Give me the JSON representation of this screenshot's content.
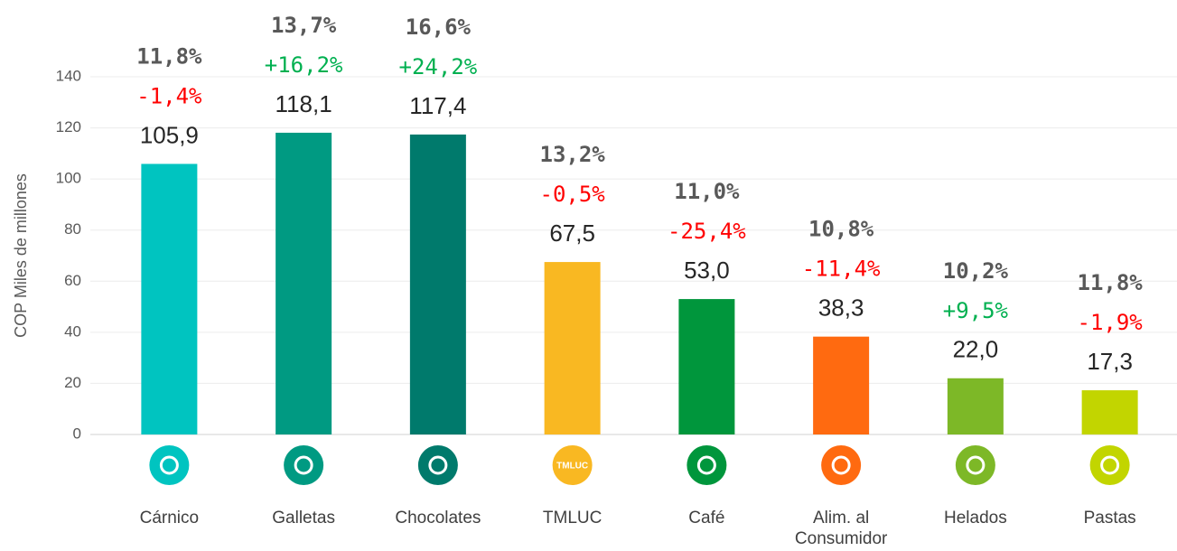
{
  "chart_data": {
    "type": "bar",
    "y_label": "COP Miles de millones",
    "categories": [
      "Cárnico",
      "Galletas",
      "Chocolates",
      "TMLUC",
      "Café",
      "Alim. al Consumidor",
      "Helados",
      "Pastas"
    ],
    "values": [
      105.9,
      118.1,
      117.4,
      67.5,
      53.0,
      38.3,
      22.0,
      17.3
    ],
    "value_labels": [
      "105,9",
      "118,1",
      "117,4",
      "67,5",
      "53,0",
      "38,3",
      "22,0",
      "17,3"
    ],
    "growth": [
      -1.4,
      16.2,
      24.2,
      -0.5,
      -25.4,
      -11.4,
      9.5,
      -1.9
    ],
    "growth_labels": [
      "-1,4%",
      "+16,2%",
      "+24,2%",
      "-0,5%",
      "-25,4%",
      "-11,4%",
      "+9,5%",
      "-1,9%"
    ],
    "margin_labels": [
      "11,8%",
      "13,7%",
      "16,6%",
      "13,2%",
      "11,0%",
      "10,8%",
      "10,2%",
      "11,8%"
    ],
    "colors": [
      "#00c4c0",
      "#009a82",
      "#007a6c",
      "#f9b822",
      "#00963c",
      "#ff6a10",
      "#7db827",
      "#c2d500"
    ],
    "ylim": [
      0,
      140
    ],
    "yticks": [
      0,
      20,
      40,
      60,
      80,
      100,
      120,
      140
    ],
    "grid": true
  }
}
